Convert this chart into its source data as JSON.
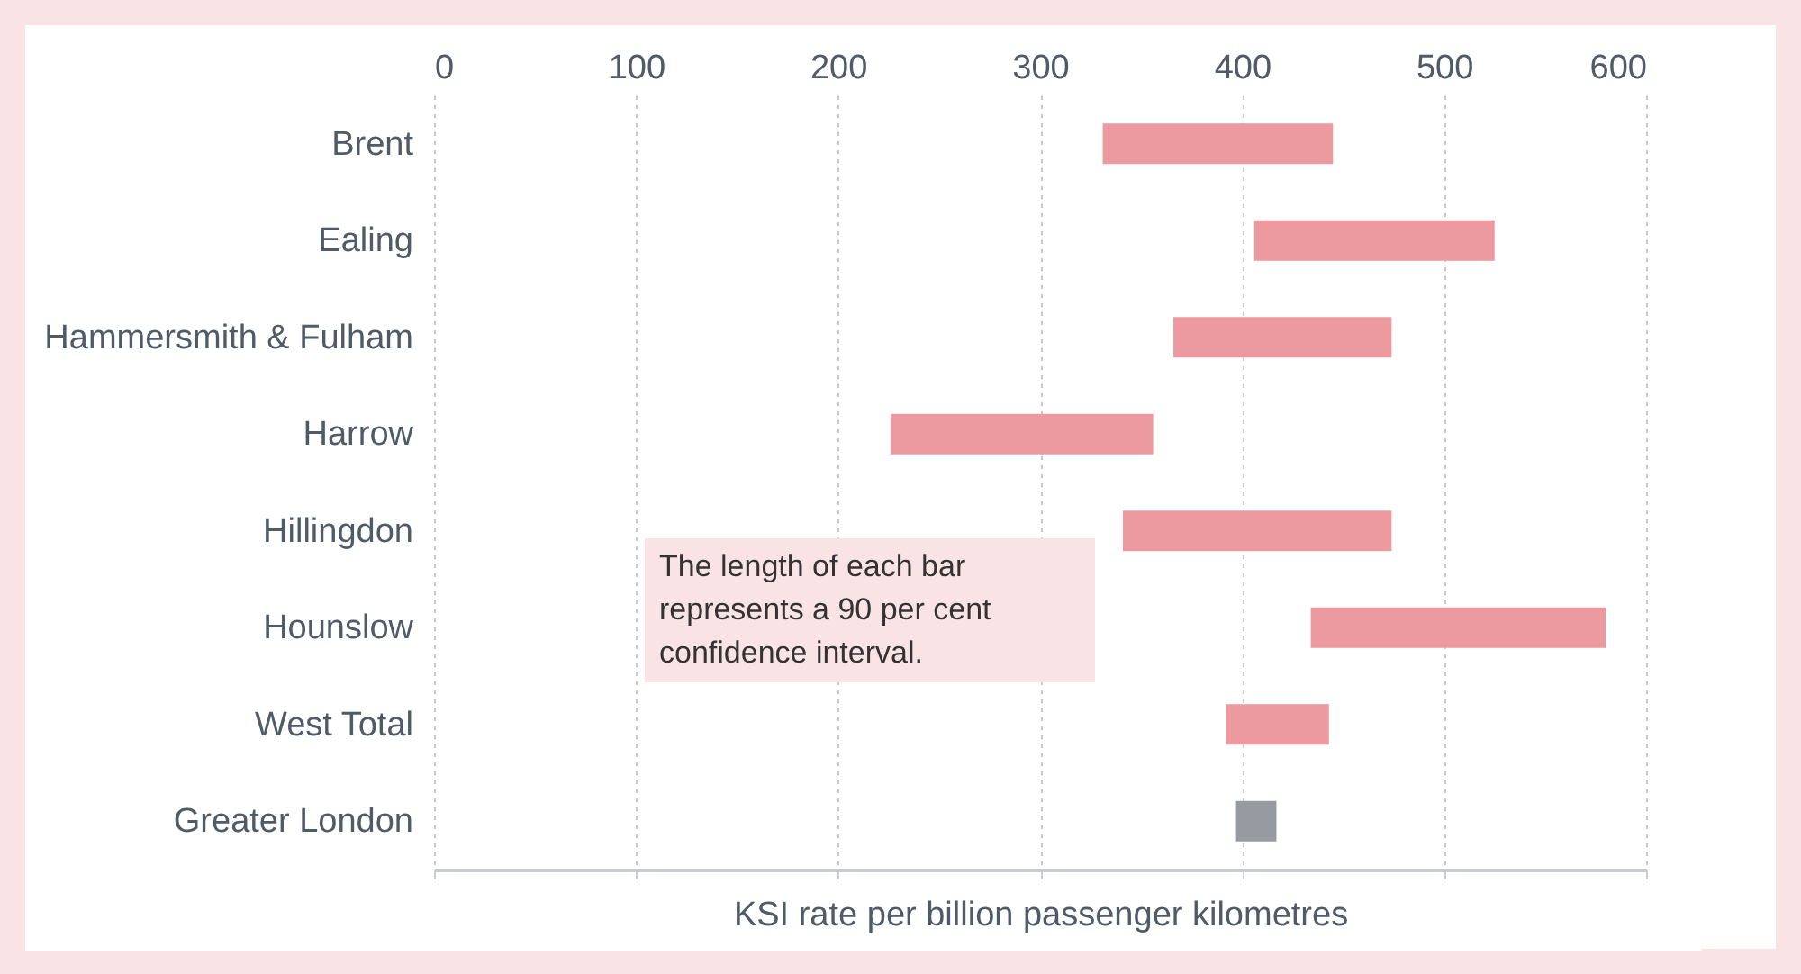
{
  "chart_data": {
    "type": "bar",
    "orientation": "horizontal",
    "xlabel": "KSI rate per billion passenger kilometres",
    "categories": [
      "Brent",
      "Ealing",
      "Hammersmith & Fulham",
      "Harrow",
      "Hillingdon",
      "Hounslow",
      "West Total",
      "Greater London"
    ],
    "base": [
      331,
      406,
      366,
      226,
      341,
      434,
      392,
      397
    ],
    "values": [
      114,
      119,
      108,
      130,
      133,
      146,
      51,
      20
    ],
    "colors": [
      "#ec999f",
      "#ec999f",
      "#ec999f",
      "#ec999f",
      "#ec999f",
      "#ec999f",
      "#ec999f",
      "#959ba1"
    ],
    "xlim": [
      0,
      600
    ],
    "xticks": [
      0,
      100,
      200,
      300,
      400,
      500,
      600
    ],
    "grid": "x",
    "annotations": [
      "The length of each bar represents a 90 per cent confidence interval."
    ]
  }
}
